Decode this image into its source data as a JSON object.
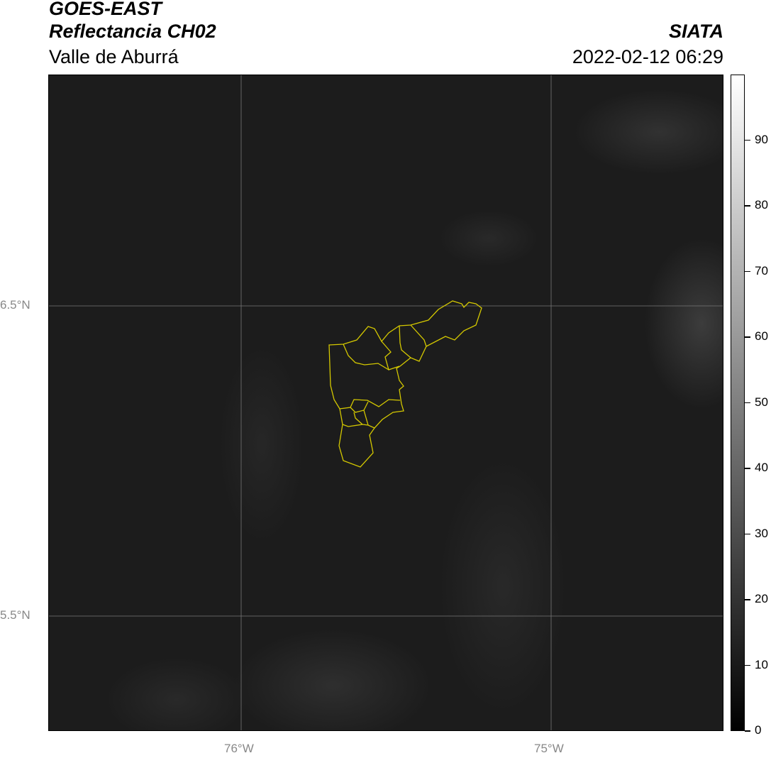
{
  "header": {
    "title_line1": "GOES-EAST",
    "title_line2": "Reflectancia CH02",
    "subtitle": "Valle de Aburrá",
    "brand": "SIATA",
    "datetime": "2022-02-12 06:29"
  },
  "map": {
    "lat_ticks": [
      "6.5°N",
      "5.5°N"
    ],
    "lon_ticks": [
      "76°W",
      "75°W"
    ],
    "boundary_color": "#d4c800",
    "gridline_color": "#777777",
    "basemap": "grayscale visible reflectance"
  },
  "colorbar": {
    "ticks": [
      "0",
      "10",
      "20",
      "30",
      "40",
      "50",
      "60",
      "70",
      "80",
      "90"
    ],
    "min": 0,
    "max": 100,
    "colormap": "gray"
  }
}
